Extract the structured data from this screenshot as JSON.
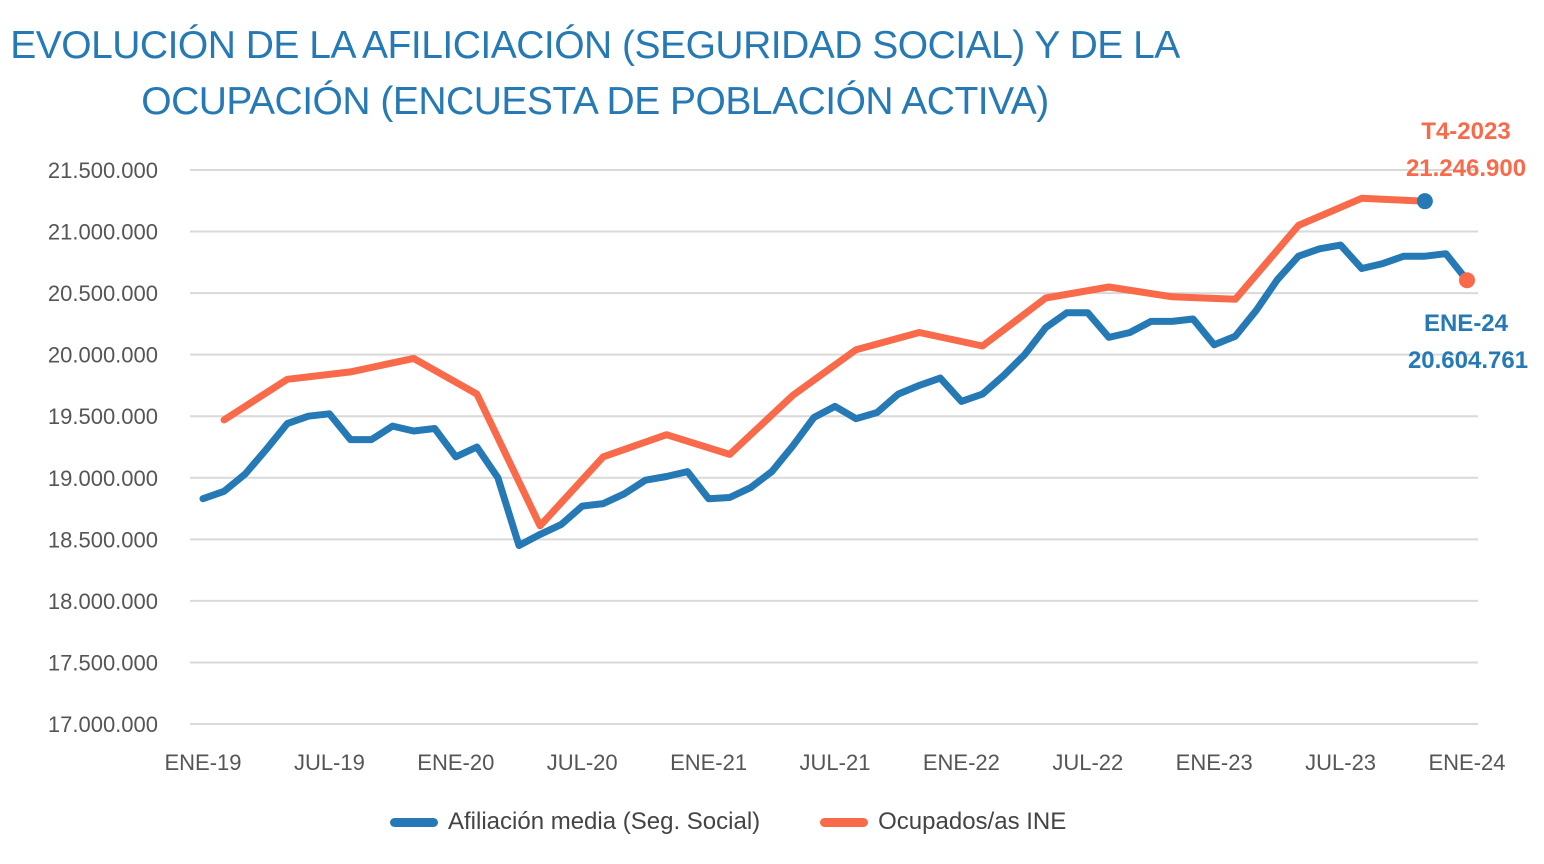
{
  "colors": {
    "affiliation": "#2579b4",
    "occupied": "#f96a4b",
    "grid": "#d9d9d9",
    "axis_text": "#555555"
  },
  "chart_data": {
    "type": "line",
    "title": "EVOLUCIÓN DE LA AFILICIACIÓN (SEGURIDAD SOCIAL) Y DE LA OCUPACIÓN (ENCUESTA DE POBLACIÓN ACTIVA)",
    "title_lines": [
      "EVOLUCIÓN DE LA AFILICIACIÓN (SEGURIDAD SOCIAL) Y DE LA",
      "OCUPACIÓN (ENCUESTA DE POBLACIÓN ACTIVA)"
    ],
    "xlabel": "",
    "ylabel": "",
    "ylim": [
      17000000,
      21500000
    ],
    "y_ticks": [
      17000000,
      17500000,
      18000000,
      18500000,
      19000000,
      19500000,
      20000000,
      20500000,
      21000000,
      21500000
    ],
    "y_tick_labels": [
      "17.000.000",
      "17.500.000",
      "18.000.000",
      "18.500.000",
      "19.000.000",
      "19.500.000",
      "20.000.000",
      "20.500.000",
      "21.000.000",
      "21.500.000"
    ],
    "x_range_months": [
      0,
      60
    ],
    "x_ticks": [
      {
        "month": 0,
        "label": "ENE-19"
      },
      {
        "month": 6,
        "label": "JUL-19"
      },
      {
        "month": 12,
        "label": "ENE-20"
      },
      {
        "month": 18,
        "label": "JUL-20"
      },
      {
        "month": 24,
        "label": "ENE-21"
      },
      {
        "month": 30,
        "label": "JUL-21"
      },
      {
        "month": 36,
        "label": "ENE-22"
      },
      {
        "month": 42,
        "label": "JUL-22"
      },
      {
        "month": 48,
        "label": "ENE-23"
      },
      {
        "month": 54,
        "label": "JUL-23"
      },
      {
        "month": 60,
        "label": "ENE-24"
      }
    ],
    "grid": true,
    "legend_position": "bottom",
    "series": [
      {
        "name": "Afiliación media (Seg. Social)",
        "color": "#2579b4",
        "frequency": "monthly",
        "x_months": [
          0,
          1,
          2,
          3,
          4,
          5,
          6,
          7,
          8,
          9,
          10,
          11,
          12,
          13,
          14,
          15,
          16,
          17,
          18,
          19,
          20,
          21,
          22,
          23,
          24,
          25,
          26,
          27,
          28,
          29,
          30,
          31,
          32,
          33,
          34,
          35,
          36,
          37,
          38,
          39,
          40,
          41,
          42,
          43,
          44,
          45,
          46,
          47,
          48,
          49,
          50,
          51,
          52,
          53,
          54,
          55,
          56,
          57,
          58,
          59,
          60
        ],
        "values": [
          18830000,
          18890000,
          19030000,
          19230000,
          19440000,
          19500000,
          19520000,
          19310000,
          19310000,
          19420000,
          19380000,
          19400000,
          19170000,
          19250000,
          19000000,
          18450000,
          18540000,
          18620000,
          18770000,
          18790000,
          18870000,
          18980000,
          19010000,
          19050000,
          18830000,
          18840000,
          18920000,
          19050000,
          19260000,
          19490000,
          19580000,
          19480000,
          19530000,
          19680000,
          19750000,
          19810000,
          19620000,
          19680000,
          19830000,
          20000000,
          20220000,
          20340000,
          20340000,
          20140000,
          20180000,
          20270000,
          20270000,
          20290000,
          20080000,
          20150000,
          20360000,
          20610000,
          20800000,
          20860000,
          20890000,
          20700000,
          20740000,
          20800000,
          20800000,
          20820000,
          20604761
        ],
        "end_marker_color": "#f96a4b"
      },
      {
        "name": "Ocupados/as INE",
        "color": "#f96a4b",
        "frequency": "quarterly",
        "x_months": [
          1,
          4,
          7,
          10,
          13,
          16,
          19,
          22,
          25,
          28,
          31,
          34,
          37,
          40,
          43,
          46,
          49,
          52,
          55,
          58
        ],
        "values": [
          19470000,
          19800000,
          19860000,
          19970000,
          19680000,
          18610000,
          19170000,
          19350000,
          19190000,
          19670000,
          20040000,
          20180000,
          20070000,
          20460000,
          20550000,
          20470000,
          20450000,
          21050000,
          21270000,
          21246900
        ],
        "end_marker_color": "#2579b4"
      }
    ],
    "annotations": [
      {
        "series": "Ocupados/as INE",
        "label": "T4-2023",
        "value_label": "21.246.900",
        "color": "#f96a4b",
        "position": "above"
      },
      {
        "series": "Afiliación media (Seg. Social)",
        "label": "ENE-24",
        "value_label": "20.604.761",
        "color": "#2579b4",
        "position": "below"
      }
    ]
  }
}
